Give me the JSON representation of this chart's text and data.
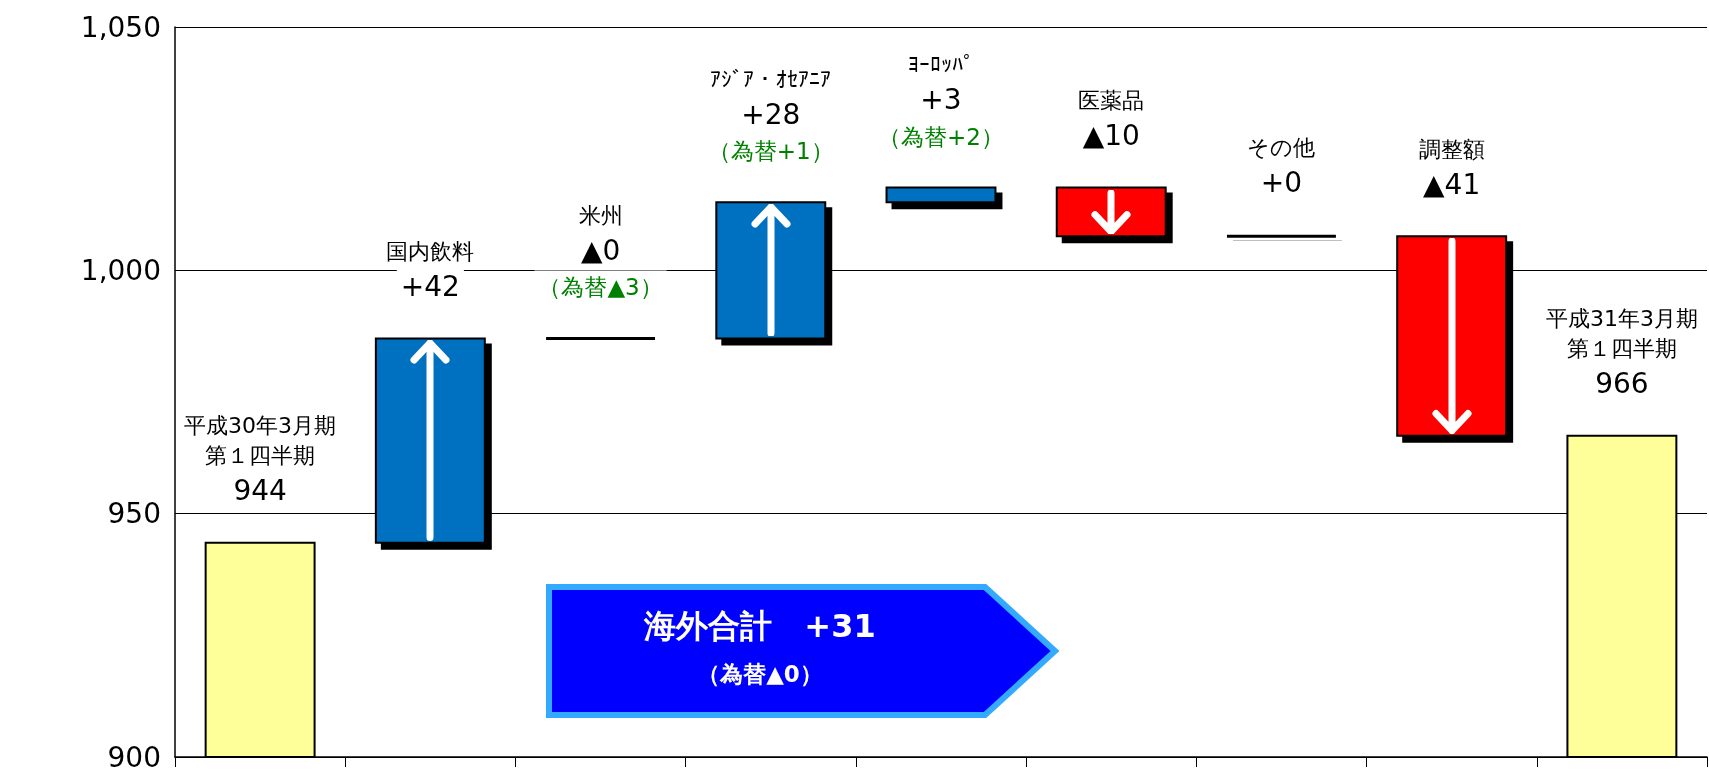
{
  "chart_data": {
    "type": "bar",
    "categories": [
      "平成30年3月期第１四半期",
      "国内飲料",
      "米州",
      "ｱｼﾞｱ・ｵｾｱﾆｱ",
      "ﾖｰﾛｯﾊﾟ",
      "医薬品",
      "その他",
      "調整額",
      "平成31年3月期第１四半期"
    ],
    "values": [
      944,
      42,
      0,
      28,
      3,
      -10,
      0,
      -41,
      966
    ],
    "base": [
      null,
      944,
      986,
      986,
      1014,
      1017,
      1007,
      1007,
      null
    ],
    "colors": [
      "#ffff99",
      "#0070c0",
      "#000000",
      "#0070c0",
      "#0070c0",
      "#ff0000",
      "#000000",
      "#ff0000",
      "#ffff99"
    ],
    "value_labels": [
      "944",
      "+42",
      "▲0",
      "+28",
      "+3",
      "▲10",
      "+0",
      "▲41",
      "966"
    ],
    "annotations": [
      {
        "text": "（為替▲3）",
        "x": "米州",
        "y": 986
      },
      {
        "text": "（為替+1）",
        "x": "ｱｼﾞｱ・ｵｾｱﾆｱ",
        "y": 1014
      },
      {
        "text": "（為替+2）",
        "x": "ﾖｰﾛｯﾊﾟ",
        "y": 1017
      },
      "海外合計　+31",
      "（為替▲0）"
    ],
    "ylim": [
      900,
      1050
    ],
    "yticks": [
      {
        "value": 900,
        "label": "900"
      },
      {
        "value": 950,
        "label": "950"
      },
      {
        "value": 1000,
        "label": "1,000"
      },
      {
        "value": 1050,
        "label": "1,050"
      }
    ],
    "grid": "y"
  }
}
